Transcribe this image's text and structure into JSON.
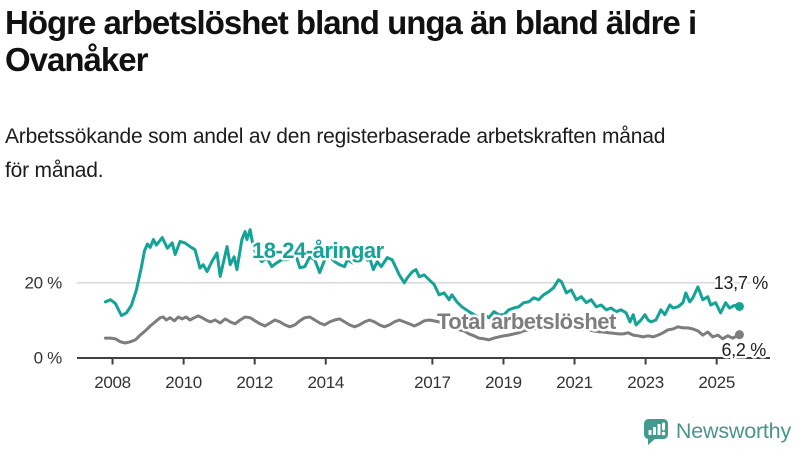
{
  "title": "Högre arbetslöshet bland unga än bland äldre i\nOvanåker",
  "subtitle": "Arbetssökande som andel av den registerbaserade arbetskraften månad\nför månad.",
  "branding": {
    "logo_text": "Newsworthy",
    "icon_color": "#419a8d",
    "text_color": "#4a958d"
  },
  "colors": {
    "accent_teal": "#14a396",
    "series_gray": "#7d7d7d",
    "axis": "#404040",
    "grid": "#d9d9d9",
    "text": "#333333"
  },
  "chart_data": {
    "type": "line",
    "title": "Högre arbetslöshet bland unga än bland äldre i Ovanåker",
    "subtitle": "Arbetssökande som andel av den registerbaserade arbetskraften månad för månad.",
    "xlabel": "",
    "ylabel": "",
    "unit": "%",
    "xlim": [
      2007.0,
      2026.5
    ],
    "ylim": [
      0,
      42
    ],
    "grid": "single horizontal gridline at 20 %",
    "legend": "inline labels next to lines",
    "x_ticks": [
      2008,
      2010,
      2012,
      2014,
      2017,
      2019,
      2021,
      2023,
      2025
    ],
    "y_ticks": [
      {
        "value": 0,
        "label": "0 %"
      },
      {
        "value": 20,
        "label": "20 %"
      }
    ],
    "series": [
      {
        "name": "18-24-åringar",
        "color": "#14a396",
        "end_label": "13,7 %",
        "end_value": 13.7,
        "points": [
          [
            2007.8,
            14.9
          ],
          [
            2007.94,
            15.5
          ],
          [
            2008.08,
            14.5
          ],
          [
            2008.25,
            11.3
          ],
          [
            2008.39,
            12.0
          ],
          [
            2008.53,
            14.0
          ],
          [
            2008.67,
            18.0
          ],
          [
            2008.81,
            24.0
          ],
          [
            2008.9,
            28.5
          ],
          [
            2008.98,
            30.3
          ],
          [
            2009.06,
            29.4
          ],
          [
            2009.15,
            31.5
          ],
          [
            2009.23,
            30.0
          ],
          [
            2009.4,
            32.0
          ],
          [
            2009.54,
            29.2
          ],
          [
            2009.68,
            30.6
          ],
          [
            2009.76,
            27.5
          ],
          [
            2009.9,
            31.0
          ],
          [
            2010.04,
            30.6
          ],
          [
            2010.18,
            29.6
          ],
          [
            2010.32,
            28.8
          ],
          [
            2010.46,
            23.9
          ],
          [
            2010.55,
            24.8
          ],
          [
            2010.66,
            23.0
          ],
          [
            2010.8,
            25.7
          ],
          [
            2010.94,
            27.9
          ],
          [
            2011.03,
            21.7
          ],
          [
            2011.22,
            29.6
          ],
          [
            2011.31,
            24.8
          ],
          [
            2011.42,
            26.9
          ],
          [
            2011.5,
            23.5
          ],
          [
            2011.64,
            31.5
          ],
          [
            2011.73,
            33.6
          ],
          [
            2011.78,
            31.5
          ],
          [
            2011.87,
            34.1
          ],
          [
            2011.95,
            30.1
          ],
          [
            2012.06,
            27.0
          ],
          [
            2012.2,
            25.6
          ],
          [
            2012.34,
            26.7
          ],
          [
            2012.48,
            24.3
          ],
          [
            2012.62,
            25.3
          ],
          [
            2012.76,
            26.1
          ],
          [
            2012.9,
            26.1
          ],
          [
            2013.04,
            26.4
          ],
          [
            2013.18,
            26.7
          ],
          [
            2013.27,
            24.0
          ],
          [
            2013.41,
            24.3
          ],
          [
            2013.55,
            26.9
          ],
          [
            2013.69,
            26.1
          ],
          [
            2013.83,
            22.7
          ],
          [
            2013.97,
            26.1
          ],
          [
            2014.11,
            26.9
          ],
          [
            2014.25,
            25.6
          ],
          [
            2014.39,
            24.8
          ],
          [
            2014.53,
            24.3
          ],
          [
            2014.61,
            26.1
          ],
          [
            2014.75,
            25.3
          ],
          [
            2014.89,
            26.9
          ],
          [
            2015.03,
            28.0
          ],
          [
            2015.17,
            26.0
          ],
          [
            2015.25,
            26.1
          ],
          [
            2015.34,
            23.5
          ],
          [
            2015.45,
            25.6
          ],
          [
            2015.56,
            24.3
          ],
          [
            2015.73,
            26.7
          ],
          [
            2015.87,
            26.1
          ],
          [
            2016.07,
            22.1
          ],
          [
            2016.21,
            20.0
          ],
          [
            2016.29,
            21.3
          ],
          [
            2016.43,
            22.9
          ],
          [
            2016.54,
            23.5
          ],
          [
            2016.63,
            21.6
          ],
          [
            2016.77,
            22.1
          ],
          [
            2016.91,
            20.8
          ],
          [
            2017.05,
            19.5
          ],
          [
            2017.19,
            16.8
          ],
          [
            2017.33,
            17.3
          ],
          [
            2017.47,
            15.5
          ],
          [
            2017.55,
            16.8
          ],
          [
            2017.69,
            14.9
          ],
          [
            2017.83,
            13.6
          ],
          [
            2018.03,
            12.3
          ],
          [
            2018.17,
            11.5
          ],
          [
            2018.31,
            10.9
          ],
          [
            2018.45,
            11.5
          ],
          [
            2018.59,
            10.7
          ],
          [
            2018.73,
            12.3
          ],
          [
            2018.87,
            11.5
          ],
          [
            2019.01,
            11.5
          ],
          [
            2019.15,
            12.8
          ],
          [
            2019.29,
            13.3
          ],
          [
            2019.43,
            13.6
          ],
          [
            2019.57,
            14.7
          ],
          [
            2019.71,
            14.9
          ],
          [
            2019.85,
            16.0
          ],
          [
            2019.99,
            15.5
          ],
          [
            2020.13,
            16.8
          ],
          [
            2020.27,
            17.6
          ],
          [
            2020.41,
            18.7
          ],
          [
            2020.55,
            20.8
          ],
          [
            2020.63,
            20.3
          ],
          [
            2020.77,
            17.3
          ],
          [
            2020.91,
            18.1
          ],
          [
            2021.05,
            15.5
          ],
          [
            2021.19,
            16.3
          ],
          [
            2021.33,
            14.7
          ],
          [
            2021.47,
            15.5
          ],
          [
            2021.61,
            13.6
          ],
          [
            2021.75,
            14.1
          ],
          [
            2021.89,
            12.8
          ],
          [
            2022.03,
            13.3
          ],
          [
            2022.17,
            12.3
          ],
          [
            2022.31,
            12.8
          ],
          [
            2022.45,
            12.0
          ],
          [
            2022.56,
            9.6
          ],
          [
            2022.65,
            11.5
          ],
          [
            2022.73,
            8.8
          ],
          [
            2022.87,
            10.1
          ],
          [
            2022.98,
            11.5
          ],
          [
            2023.07,
            10.1
          ],
          [
            2023.15,
            9.6
          ],
          [
            2023.29,
            10.1
          ],
          [
            2023.43,
            12.8
          ],
          [
            2023.54,
            11.5
          ],
          [
            2023.68,
            14.1
          ],
          [
            2023.77,
            13.3
          ],
          [
            2023.91,
            13.6
          ],
          [
            2024.05,
            14.7
          ],
          [
            2024.13,
            17.3
          ],
          [
            2024.24,
            14.9
          ],
          [
            2024.33,
            16.0
          ],
          [
            2024.47,
            18.9
          ],
          [
            2024.61,
            15.5
          ],
          [
            2024.75,
            16.3
          ],
          [
            2024.83,
            14.1
          ],
          [
            2024.97,
            14.7
          ],
          [
            2025.11,
            12.0
          ],
          [
            2025.25,
            14.7
          ],
          [
            2025.36,
            13.3
          ],
          [
            2025.5,
            14.0
          ],
          [
            2025.64,
            13.7
          ]
        ]
      },
      {
        "name": "Total arbetslöshet",
        "color": "#7d7d7d",
        "end_label": "6,2 %",
        "end_value": 6.2,
        "points": [
          [
            2007.8,
            5.3
          ],
          [
            2007.94,
            5.3
          ],
          [
            2008.08,
            5.1
          ],
          [
            2008.22,
            4.3
          ],
          [
            2008.36,
            4.0
          ],
          [
            2008.5,
            4.3
          ],
          [
            2008.64,
            4.8
          ],
          [
            2008.78,
            6.1
          ],
          [
            2008.92,
            7.2
          ],
          [
            2009.06,
            8.5
          ],
          [
            2009.2,
            9.6
          ],
          [
            2009.34,
            10.7
          ],
          [
            2009.43,
            10.9
          ],
          [
            2009.51,
            10.1
          ],
          [
            2009.62,
            10.7
          ],
          [
            2009.74,
            9.9
          ],
          [
            2009.85,
            10.9
          ],
          [
            2009.96,
            10.4
          ],
          [
            2010.07,
            10.9
          ],
          [
            2010.18,
            10.1
          ],
          [
            2010.3,
            10.7
          ],
          [
            2010.41,
            11.2
          ],
          [
            2010.52,
            10.7
          ],
          [
            2010.63,
            10.1
          ],
          [
            2010.75,
            9.6
          ],
          [
            2010.89,
            10.1
          ],
          [
            2011.03,
            9.3
          ],
          [
            2011.17,
            10.4
          ],
          [
            2011.31,
            9.6
          ],
          [
            2011.45,
            9.1
          ],
          [
            2011.59,
            10.1
          ],
          [
            2011.73,
            10.9
          ],
          [
            2011.87,
            10.7
          ],
          [
            2012.01,
            9.9
          ],
          [
            2012.15,
            9.1
          ],
          [
            2012.29,
            8.5
          ],
          [
            2012.43,
            9.3
          ],
          [
            2012.57,
            10.1
          ],
          [
            2012.71,
            9.6
          ],
          [
            2012.85,
            8.8
          ],
          [
            2012.99,
            8.3
          ],
          [
            2013.13,
            8.8
          ],
          [
            2013.27,
            9.9
          ],
          [
            2013.41,
            10.7
          ],
          [
            2013.55,
            10.9
          ],
          [
            2013.69,
            10.1
          ],
          [
            2013.83,
            9.3
          ],
          [
            2013.97,
            8.8
          ],
          [
            2014.11,
            9.6
          ],
          [
            2014.25,
            10.1
          ],
          [
            2014.39,
            10.4
          ],
          [
            2014.53,
            9.6
          ],
          [
            2014.67,
            8.8
          ],
          [
            2014.81,
            8.3
          ],
          [
            2014.95,
            8.8
          ],
          [
            2015.09,
            9.6
          ],
          [
            2015.23,
            10.1
          ],
          [
            2015.37,
            9.6
          ],
          [
            2015.51,
            8.8
          ],
          [
            2015.65,
            8.3
          ],
          [
            2015.79,
            8.8
          ],
          [
            2015.93,
            9.6
          ],
          [
            2016.07,
            10.1
          ],
          [
            2016.21,
            9.6
          ],
          [
            2016.35,
            9.1
          ],
          [
            2016.49,
            8.5
          ],
          [
            2016.63,
            9.1
          ],
          [
            2016.77,
            9.9
          ],
          [
            2016.91,
            10.1
          ],
          [
            2017.19,
            9.6
          ],
          [
            2017.33,
            9.1
          ],
          [
            2017.47,
            8.5
          ],
          [
            2017.61,
            8.0
          ],
          [
            2017.75,
            7.5
          ],
          [
            2017.89,
            7.2
          ],
          [
            2018.03,
            6.4
          ],
          [
            2018.17,
            5.9
          ],
          [
            2018.31,
            5.3
          ],
          [
            2018.45,
            5.1
          ],
          [
            2018.59,
            4.8
          ],
          [
            2018.73,
            5.3
          ],
          [
            2018.87,
            5.6
          ],
          [
            2019.01,
            5.9
          ],
          [
            2019.15,
            6.1
          ],
          [
            2019.29,
            6.4
          ],
          [
            2019.43,
            6.7
          ],
          [
            2019.57,
            7.2
          ],
          [
            2019.71,
            7.5
          ],
          [
            2019.85,
            7.7
          ],
          [
            2019.99,
            8.0
          ],
          [
            2020.13,
            8.3
          ],
          [
            2020.27,
            8.5
          ],
          [
            2020.41,
            8.8
          ],
          [
            2020.55,
            9.1
          ],
          [
            2020.69,
            8.8
          ],
          [
            2020.83,
            8.5
          ],
          [
            2020.97,
            8.3
          ],
          [
            2021.11,
            8.0
          ],
          [
            2021.25,
            7.7
          ],
          [
            2021.39,
            7.5
          ],
          [
            2021.53,
            7.2
          ],
          [
            2021.67,
            7.0
          ],
          [
            2021.81,
            6.9
          ],
          [
            2021.95,
            6.7
          ],
          [
            2022.09,
            6.6
          ],
          [
            2022.23,
            6.4
          ],
          [
            2022.37,
            6.4
          ],
          [
            2022.51,
            6.7
          ],
          [
            2022.65,
            6.1
          ],
          [
            2022.79,
            5.9
          ],
          [
            2022.93,
            5.6
          ],
          [
            2023.07,
            5.9
          ],
          [
            2023.21,
            5.6
          ],
          [
            2023.35,
            6.1
          ],
          [
            2023.49,
            6.7
          ],
          [
            2023.63,
            7.5
          ],
          [
            2023.77,
            7.7
          ],
          [
            2023.91,
            8.3
          ],
          [
            2024.05,
            8.0
          ],
          [
            2024.19,
            8.0
          ],
          [
            2024.33,
            7.7
          ],
          [
            2024.47,
            7.2
          ],
          [
            2024.61,
            6.1
          ],
          [
            2024.75,
            6.9
          ],
          [
            2024.89,
            5.6
          ],
          [
            2025.03,
            6.1
          ],
          [
            2025.17,
            5.1
          ],
          [
            2025.31,
            5.9
          ],
          [
            2025.45,
            5.3
          ],
          [
            2025.64,
            6.2
          ]
        ]
      }
    ]
  }
}
